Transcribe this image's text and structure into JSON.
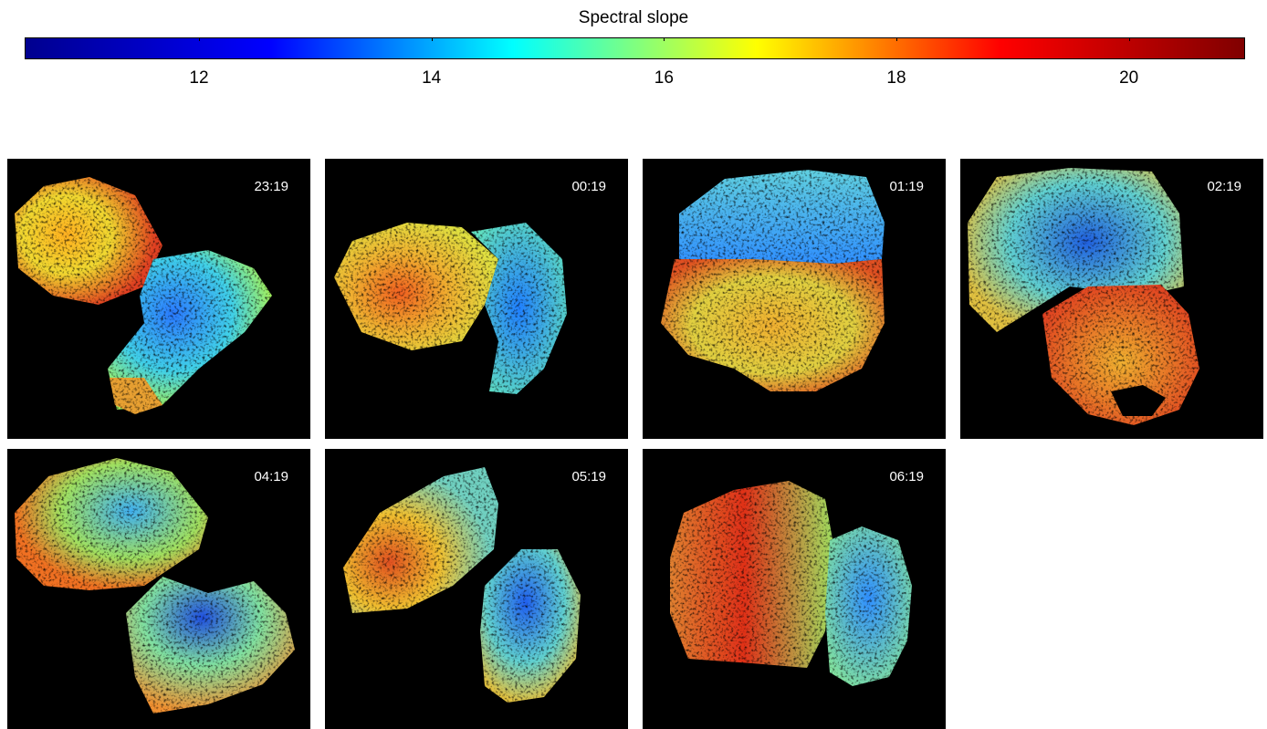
{
  "colorbar": {
    "title": "Spectral slope",
    "min": 10.5,
    "max": 21,
    "ticks": [
      12,
      14,
      16,
      18,
      20
    ],
    "colormap": "jet",
    "stops": [
      "#00008f",
      "#0000ff",
      "#00ffff",
      "#ffff00",
      "#ff0000",
      "#800000"
    ]
  },
  "panels": [
    {
      "time": "23:19"
    },
    {
      "time": "00:19"
    },
    {
      "time": "01:19"
    },
    {
      "time": "02:19"
    },
    {
      "time": "04:19"
    },
    {
      "time": "05:19"
    },
    {
      "time": "06:19"
    }
  ]
}
